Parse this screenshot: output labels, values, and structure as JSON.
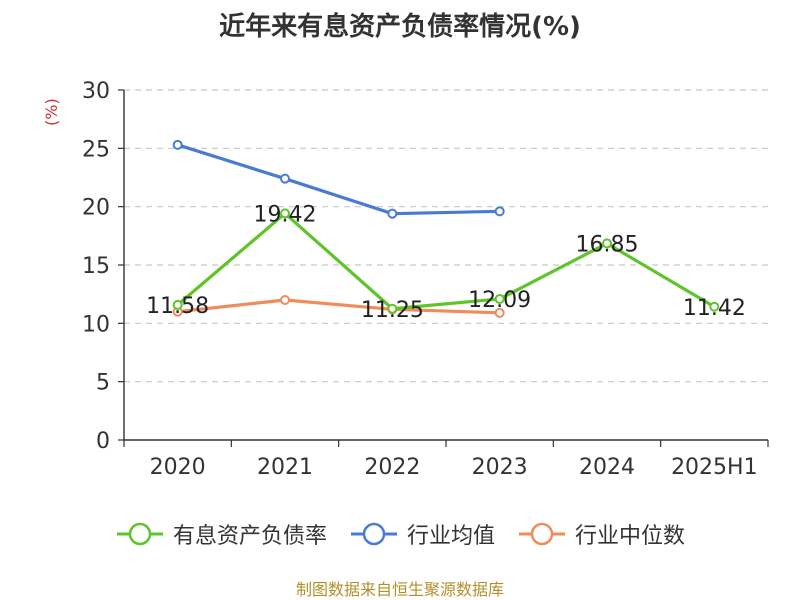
{
  "chart_data": {
    "type": "line",
    "title": "近年来有息资产负债率情况(%)",
    "ylabel": "(%)",
    "xlabel": "",
    "categories": [
      "2020",
      "2021",
      "2022",
      "2023",
      "2024",
      "2025H1"
    ],
    "ylim": [
      0,
      30
    ],
    "yticks": [
      0,
      5,
      10,
      15,
      20,
      25,
      30
    ],
    "grid": true,
    "legend_position": "bottom",
    "series": [
      {
        "name": "有息资产负债率",
        "color": "#5ec428",
        "values": [
          11.58,
          19.42,
          11.25,
          12.09,
          16.85,
          11.42
        ],
        "labels": [
          "11.58",
          "19.42",
          "11.25",
          "12.09",
          "16.85",
          "11.42"
        ]
      },
      {
        "name": "行业均值",
        "color": "#4a7bd4",
        "values": [
          25.3,
          22.4,
          19.4,
          19.6,
          null,
          null
        ],
        "labels": null
      },
      {
        "name": "行业中位数",
        "color": "#f08c5a",
        "values": [
          11.0,
          12.0,
          11.2,
          10.9,
          null,
          null
        ],
        "labels": null
      }
    ]
  },
  "footer": "制图数据来自恒生聚源数据库"
}
